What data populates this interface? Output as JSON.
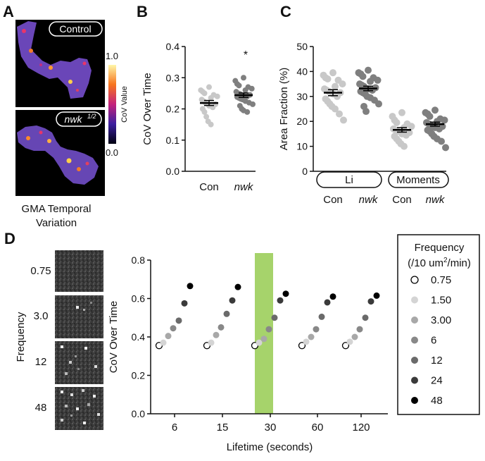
{
  "panel_labels": {
    "a": "A",
    "b": "B",
    "c": "C",
    "d": "D"
  },
  "panel_a": {
    "image_labels": [
      "Control",
      "nwk",
      "1/2"
    ],
    "colorbar": {
      "max_label": "1.0",
      "min_label": "0.0",
      "title": "CoV Value"
    },
    "caption_line1": "GMA Temporal",
    "caption_line2": "Variation"
  },
  "panel_d_images": {
    "ylabel": "Frequency",
    "labels": [
      "0.75",
      "3.0",
      "12",
      "48"
    ]
  },
  "legend": {
    "title_line1": "Frequency",
    "title_line2_a": "(/10 um",
    "title_line2_sup": "2",
    "title_line2_b": "/min)",
    "entries": [
      "0.75",
      "1.50",
      "3.00",
      "6",
      "12",
      "24",
      "48"
    ],
    "colors": [
      "#ffffff",
      "#d4d4d4",
      "#a8a8a8",
      "#888888",
      "#6a6a6a",
      "#3a3a3a",
      "#000000"
    ]
  },
  "chart_data": [
    {
      "id": "B",
      "type": "scatter",
      "title": "",
      "ylabel": "CoV Over Time",
      "ylim": [
        0.0,
        0.4
      ],
      "yticks": [
        "0.0",
        "0.1",
        "0.2",
        "0.3",
        "0.4"
      ],
      "categories": [
        "Con",
        "nwk"
      ],
      "significance": "*",
      "groups": [
        {
          "name": "Con",
          "color": "#c8c8c8",
          "mean": 0.219,
          "sem": 0.008,
          "values": [
            0.27,
            0.26,
            0.255,
            0.25,
            0.245,
            0.24,
            0.235,
            0.23,
            0.225,
            0.22,
            0.215,
            0.21,
            0.205,
            0.2,
            0.19,
            0.175,
            0.16,
            0.15
          ]
        },
        {
          "name": "nwk",
          "color": "#7f7f7f",
          "mean": 0.244,
          "sem": 0.007,
          "values": [
            0.3,
            0.29,
            0.28,
            0.275,
            0.27,
            0.265,
            0.26,
            0.255,
            0.25,
            0.248,
            0.245,
            0.242,
            0.24,
            0.238,
            0.235,
            0.232,
            0.23,
            0.225,
            0.22,
            0.215,
            0.21,
            0.2,
            0.195,
            0.19
          ]
        }
      ]
    },
    {
      "id": "C",
      "type": "scatter",
      "title": "",
      "ylabel": "Area Fraction (%)",
      "ylim": [
        0,
        50
      ],
      "yticks": [
        "0",
        "10",
        "20",
        "30",
        "40",
        "50"
      ],
      "categories": [
        "Con",
        "nwk",
        "Con",
        "nwk"
      ],
      "methods": [
        "Li",
        "Moments"
      ],
      "groups": [
        {
          "name": "Li Con",
          "color": "#c8c8c8",
          "mean": 31.5,
          "sem": 1.2,
          "values": [
            39.5,
            38.5,
            37.5,
            37,
            36.5,
            35,
            34,
            33,
            32.5,
            32,
            31.5,
            31,
            30,
            29,
            28,
            27,
            26,
            25,
            23,
            20.5
          ]
        },
        {
          "name": "Li nwk",
          "color": "#7f7f7f",
          "mean": 33.2,
          "sem": 0.9,
          "values": [
            40.5,
            39.5,
            39,
            38,
            37.5,
            36.5,
            36,
            35,
            34.5,
            34,
            33.5,
            33,
            32.5,
            32,
            31.5,
            31,
            30,
            29.5,
            28.5,
            27,
            26,
            24
          ]
        },
        {
          "name": "Moments Con",
          "color": "#c8c8c8",
          "mean": 16.6,
          "sem": 0.9,
          "values": [
            23.5,
            22,
            20.5,
            19.5,
            19,
            18,
            17.5,
            17,
            16.5,
            16,
            15.5,
            15,
            14.5,
            14,
            13,
            12,
            11,
            10
          ]
        },
        {
          "name": "Moments nwk",
          "color": "#7f7f7f",
          "mean": 18.9,
          "sem": 0.8,
          "values": [
            24.5,
            23.5,
            23,
            22,
            21,
            20.5,
            20,
            19.5,
            19,
            18.5,
            18,
            17.5,
            17,
            16.5,
            16,
            15,
            14,
            13,
            12,
            9.5
          ]
        }
      ]
    },
    {
      "id": "D",
      "type": "scatter",
      "title": "",
      "xlabel": "Lifetime (seconds)",
      "ylabel": "CoV Over Time",
      "ylim": [
        0.0,
        0.8
      ],
      "yticks": [
        "0.0",
        "0.2",
        "0.4",
        "0.6",
        "0.8"
      ],
      "xcategories": [
        "6",
        "15",
        "30",
        "60",
        "120"
      ],
      "highlight_category": "30",
      "highlight_color": "#a6d36b",
      "series": [
        {
          "lifetime": "6",
          "values": [
            0.355,
            0.37,
            0.405,
            0.445,
            0.485,
            0.575,
            0.665
          ]
        },
        {
          "lifetime": "15",
          "values": [
            0.355,
            0.37,
            0.41,
            0.45,
            0.52,
            0.59,
            0.66
          ]
        },
        {
          "lifetime": "30",
          "values": [
            0.355,
            0.37,
            0.39,
            0.44,
            0.5,
            0.59,
            0.625
          ]
        },
        {
          "lifetime": "60",
          "values": [
            0.355,
            0.375,
            0.4,
            0.44,
            0.505,
            0.58,
            0.61
          ]
        },
        {
          "lifetime": "120",
          "values": [
            0.355,
            0.375,
            0.4,
            0.44,
            0.5,
            0.585,
            0.615
          ]
        }
      ]
    }
  ]
}
